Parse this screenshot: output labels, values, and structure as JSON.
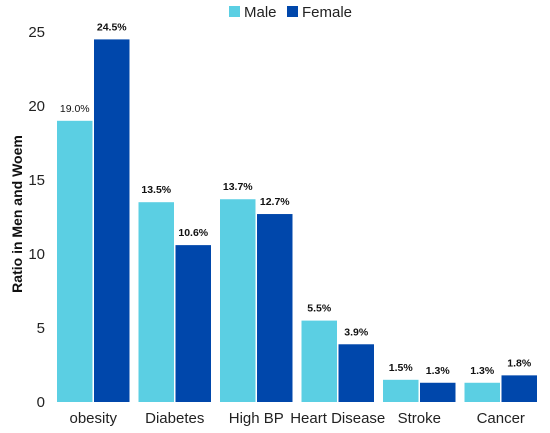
{
  "chart_data": {
    "type": "bar",
    "title": "",
    "xlabel": "",
    "ylabel": "Ratio in Men and Woem",
    "ylim": [
      0,
      25
    ],
    "yticks": [
      0,
      5,
      10,
      15,
      20,
      25
    ],
    "grid": false,
    "legend_position": "top-center",
    "categories": [
      "obesity",
      "Diabetes",
      "High BP",
      "Heart Disease",
      "Stroke",
      "Cancer"
    ],
    "series": [
      {
        "name": "Male",
        "color": "#5BCFE3",
        "values": [
          19.0,
          13.5,
          13.7,
          5.5,
          1.5,
          1.3
        ],
        "labels": [
          "19.0%",
          "13.5%",
          "13.7%",
          "5.5%",
          "1.5%",
          "1.3%"
        ]
      },
      {
        "name": "Female",
        "color": "#0047AB",
        "values": [
          24.5,
          10.6,
          12.7,
          3.9,
          1.3,
          1.8
        ],
        "labels": [
          "24.5%",
          "10.6%",
          "12.7%",
          "3.9%",
          "1.3%",
          "1.8%"
        ]
      }
    ]
  }
}
